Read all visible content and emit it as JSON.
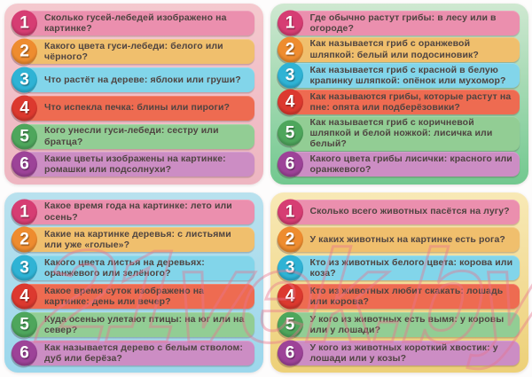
{
  "watermark": {
    "text": "21vek.by",
    "color": "#e8758f"
  },
  "palette": {
    "band_colors": [
      "#eb8fae",
      "#f0bf6d",
      "#82d5ea",
      "#ee6b51",
      "#92cd94",
      "#cc8dc4"
    ],
    "circle_colors": [
      "#d63d73",
      "#ee8c2f",
      "#2fb3d5",
      "#dc392f",
      "#4ea65c",
      "#9d4398"
    ],
    "text_color": "#4f4441",
    "number_color": "#ffffff"
  },
  "cards": [
    {
      "bg_top": "#f4c9ce",
      "bg_bottom": "#eeb6c1",
      "questions": [
        {
          "num": "1",
          "text": "Сколько гусей-лебедей изображено на картинке?"
        },
        {
          "num": "2",
          "text": "Какого цвета гуси-лебеди: белого или чёрного?"
        },
        {
          "num": "3",
          "text": "Что растёт на дереве: яблоки или груши?"
        },
        {
          "num": "4",
          "text": "Что испекла печка: блины или пироги?"
        },
        {
          "num": "5",
          "text": "Кого унесли гуси-лебеди: сестру или братца?"
        },
        {
          "num": "6",
          "text": "Какие цветы изображены на картинке: ромашки или подсолнухи?"
        }
      ]
    },
    {
      "bg_top": "#cfe8d1",
      "bg_bottom": "#72c88f",
      "questions": [
        {
          "num": "1",
          "text": "Где обычно растут грибы: в лесу или в огороде?"
        },
        {
          "num": "2",
          "text": "Как называется гриб с оранжевой шляпкой: белый или подосиновик?"
        },
        {
          "num": "3",
          "text": "Как называется гриб с красной в белую крапинку шляпкой: опёнок или мухомор?"
        },
        {
          "num": "4",
          "text": "Как называются грибы, которые растут на пне: опята или подберёзовики?"
        },
        {
          "num": "5",
          "text": "Как называется гриб с коричневой шляпкой и белой ножкой: лисичка или белый?"
        },
        {
          "num": "6",
          "text": "Какого цвета грибы лисички: красного или оранжевого?"
        }
      ]
    },
    {
      "bg_top": "#b9e1ee",
      "bg_bottom": "#9cd7ec",
      "questions": [
        {
          "num": "1",
          "text": "Какое время года на картинке: лето или осень?"
        },
        {
          "num": "2",
          "text": "Какие на картинке деревья: с листьями или уже «голые»?"
        },
        {
          "num": "3",
          "text": "Какого цвета листья на деревьях: оранжевого или зелёного?"
        },
        {
          "num": "4",
          "text": "Какое время суток изображено на картинке: день или вечер?"
        },
        {
          "num": "5",
          "text": "Куда осенью улетают птицы: на юг или на север?"
        },
        {
          "num": "6",
          "text": "Как называется дерево с белым стволом: дуб или берёза?"
        }
      ]
    },
    {
      "bg_top": "#f8e9b6",
      "bg_bottom": "#edd078",
      "questions": [
        {
          "num": "1",
          "text": "Сколько всего животных пасётся на лугу?"
        },
        {
          "num": "2",
          "text": "У каких животных на картинке есть рога?"
        },
        {
          "num": "3",
          "text": "Кто из животных белого цвета: корова или коза?"
        },
        {
          "num": "4",
          "text": "Кто из животных любит скакать: лошадь или корова?"
        },
        {
          "num": "5",
          "text": "У кого из животных есть вымя: у коровы или у лошади?"
        },
        {
          "num": "6",
          "text": "У кого из животных короткий хвостик: у лошади или у козы?"
        }
      ]
    }
  ]
}
